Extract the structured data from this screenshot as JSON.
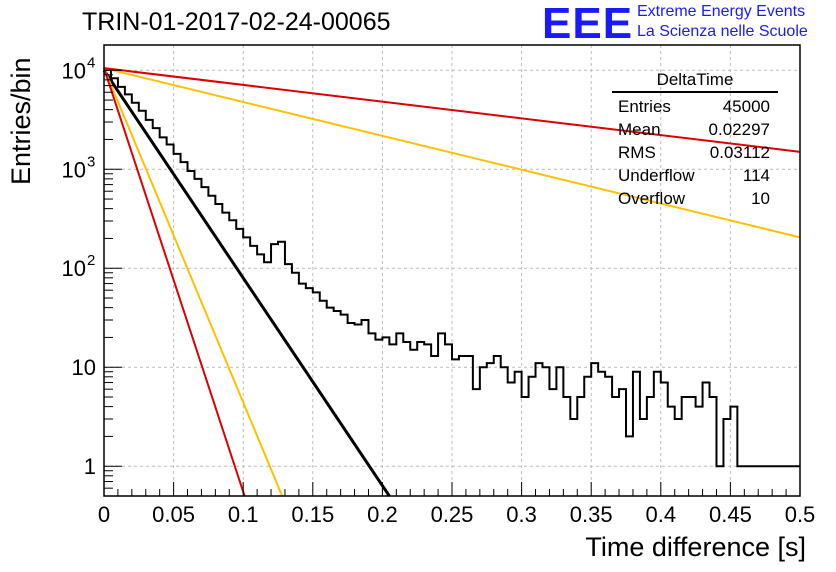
{
  "title": "TRIN-01-2017-02-24-00065",
  "logo": {
    "text": "EEE",
    "line1": "Extreme Energy Events",
    "line2": "La Scienza nelle Scuole"
  },
  "colors": {
    "red": "#dd0000",
    "orange": "#ffc000",
    "black": "#000000",
    "grid": "#bbbbbb"
  },
  "stats": {
    "title": "DeltaTime",
    "rows": [
      {
        "label": "Entries",
        "value": "45000"
      },
      {
        "label": "Mean",
        "value": "0.02297"
      },
      {
        "label": "RMS",
        "value": "0.03112"
      },
      {
        "label": "Underflow",
        "value": "114"
      },
      {
        "label": "Overflow",
        "value": "10"
      }
    ]
  },
  "chart_data": {
    "type": "line",
    "xlabel": "Time difference [s]",
    "ylabel": "Entries/bin",
    "xlim": [
      0,
      0.5
    ],
    "ylim": [
      0.5,
      18000
    ],
    "yscale": "log",
    "grid": true,
    "x_ticks": [
      "0",
      "0.05",
      "0.1",
      "0.15",
      "0.2",
      "0.25",
      "0.3",
      "0.35",
      "0.4",
      "0.45",
      "0.5"
    ],
    "y_ticks": [
      {
        "value": 1,
        "label": "1"
      },
      {
        "value": 10,
        "label": "10"
      },
      {
        "value": 100,
        "label": "10",
        "exp": "2"
      },
      {
        "value": 1000,
        "label": "10",
        "exp": "3"
      },
      {
        "value": 10000,
        "label": "10",
        "exp": "4"
      }
    ],
    "histogram": {
      "bin_width": 0.005,
      "values": [
        10100,
        8300,
        6800,
        5700,
        4700,
        3900,
        3150,
        2600,
        2100,
        1780,
        1430,
        1180,
        960,
        800,
        660,
        540,
        445,
        365,
        305,
        250,
        205,
        168,
        138,
        115,
        175,
        185,
        110,
        90,
        70,
        63,
        57,
        47,
        40,
        37,
        34,
        28,
        27,
        30,
        22,
        19,
        20,
        17,
        22,
        18,
        15,
        18,
        17,
        13,
        22,
        17,
        12,
        13,
        13,
        6,
        10,
        11,
        13,
        10,
        7,
        9,
        5,
        8,
        11,
        10,
        6,
        10,
        5,
        3,
        5,
        8,
        11,
        9,
        8,
        5,
        6,
        2,
        9,
        3,
        5,
        9,
        7,
        4,
        3,
        5,
        5,
        4,
        7,
        5,
        1,
        3,
        4,
        1,
        1,
        1,
        1,
        1,
        1,
        1,
        1,
        1
      ]
    },
    "series": [
      {
        "color": "black",
        "points": [
          [
            0,
            10000
          ],
          [
            0.205,
            0.5
          ]
        ]
      },
      {
        "color": "orange",
        "points": [
          [
            0,
            10500
          ],
          [
            0.5,
            205
          ]
        ]
      },
      {
        "color": "red",
        "points": [
          [
            0,
            10500
          ],
          [
            0.5,
            1500
          ]
        ]
      },
      {
        "color": "orange",
        "points": [
          [
            0,
            10500
          ],
          [
            0.128,
            0.5
          ]
        ]
      },
      {
        "color": "red",
        "points": [
          [
            0,
            10500
          ],
          [
            0.101,
            0.5
          ]
        ]
      }
    ]
  }
}
